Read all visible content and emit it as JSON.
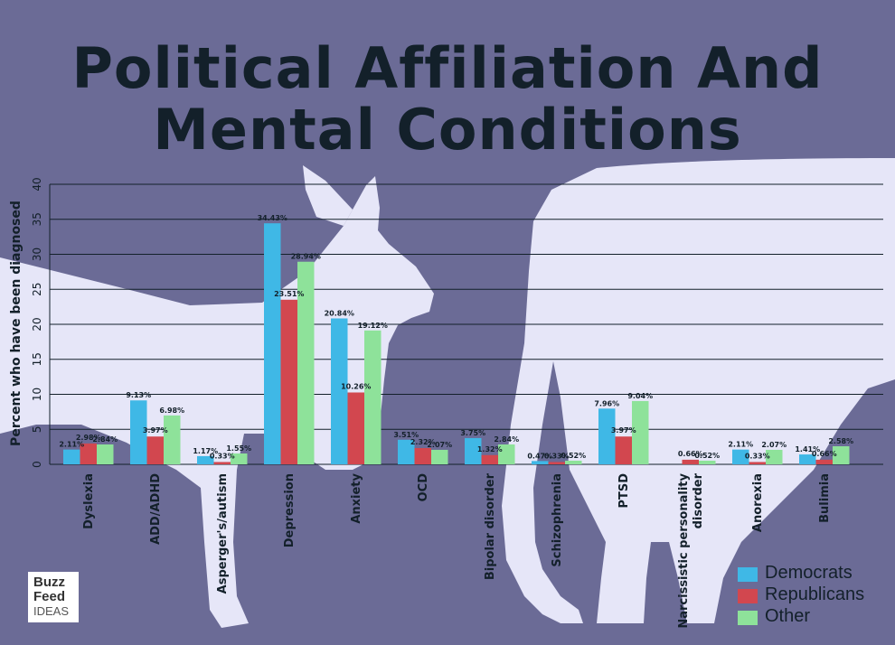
{
  "title_lines": [
    "Political Affiliation And",
    "Mental Conditions"
  ],
  "logo": {
    "line1": "Buzz",
    "line2": "Feed",
    "line3": "IDEAS"
  },
  "colors": {
    "background": "#6b6b96",
    "silhouette": "#e6e6f8",
    "democrats": "#3fb8e6",
    "republicans": "#d2474f",
    "other": "#8ee29a",
    "text": "#13202a"
  },
  "chart_data": {
    "type": "bar",
    "title": "Political Affiliation And Mental Conditions",
    "ylabel": "Percent who have been diagnosed",
    "xlabel": "",
    "ylim": [
      0,
      40
    ],
    "yticks": [
      0,
      5,
      10,
      15,
      20,
      25,
      30,
      35,
      40
    ],
    "grid": true,
    "legend_position": "bottom-right",
    "categories": [
      "Dyslexia",
      "ADD/ADHD",
      "Asperger's/autism",
      "Depression",
      "Anxiety",
      "OCD",
      "Bipolar disorder",
      "Schizophrenia",
      "PTSD",
      "Narcissistic personality disorder",
      "Anorexia",
      "Bulimia"
    ],
    "series": [
      {
        "name": "Democrats",
        "color": "#3fb8e6",
        "values": [
          2.11,
          9.13,
          1.17,
          34.43,
          20.84,
          3.51,
          3.75,
          0.47,
          7.96,
          0,
          2.11,
          1.41
        ],
        "labels": [
          "2.11%",
          "9.13%",
          "1.17%",
          "34.43%",
          "20.84%",
          "3.51%",
          "3.75%",
          "0.47%",
          "7.96%",
          "",
          "2.11%",
          "1.41%"
        ]
      },
      {
        "name": "Republicans",
        "color": "#d2474f",
        "values": [
          2.98,
          3.97,
          0.33,
          23.51,
          10.26,
          2.32,
          1.32,
          0.33,
          3.97,
          0.66,
          0.33,
          0.66
        ],
        "labels": [
          "2.98%",
          "3.97%",
          "0.33%",
          "23.51%",
          "10.26%",
          "2.32%",
          "1.32%",
          "0.33%",
          "3.97%",
          "0.66%",
          "0.33%",
          "0.66%"
        ]
      },
      {
        "name": "Other",
        "color": "#8ee29a",
        "values": [
          2.84,
          6.98,
          1.55,
          28.94,
          19.12,
          2.07,
          2.84,
          0.52,
          9.04,
          0.52,
          2.07,
          2.58
        ],
        "labels": [
          "2.84%",
          "6.98%",
          "1.55%",
          "28.94%",
          "19.12%",
          "2.07%",
          "2.84%",
          "0.52%",
          "9.04%",
          "0.52%",
          "2.07%",
          "2.58%"
        ]
      }
    ]
  }
}
